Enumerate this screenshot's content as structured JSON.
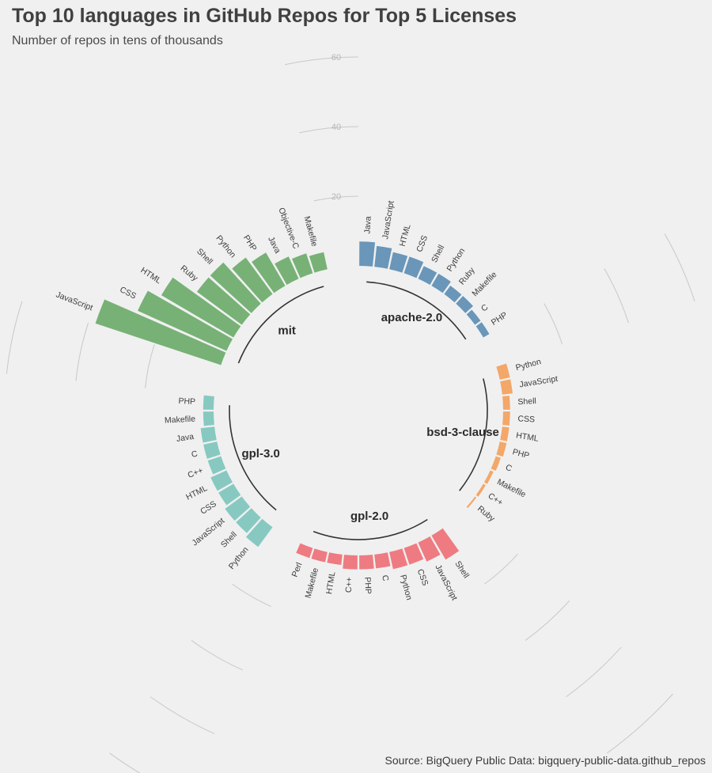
{
  "title": "Top 10 languages in GitHub Repos for Top 5 Licenses",
  "subtitle": "Number of repos in tens of thousands",
  "caption": "Source: BigQuery Public Data: bigquery-public-data.github_repos",
  "chart_data": {
    "type": "bar",
    "coordinate_system": "circular",
    "ylim": [
      0,
      80
    ],
    "y_ticks": [
      20,
      40,
      60,
      80
    ],
    "grid": true,
    "legend": "none",
    "series": [
      {
        "name": "apache-2.0",
        "color": "#6a96b9",
        "categories": [
          "Java",
          "JavaScript",
          "HTML",
          "CSS",
          "Shell",
          "Python",
          "Ruby",
          "Makefile",
          "C",
          "PHP"
        ],
        "values": [
          7,
          6,
          5,
          5,
          4,
          4,
          3,
          3,
          2,
          2
        ]
      },
      {
        "name": "bsd-3-clause",
        "color": "#f3a769",
        "categories": [
          "Python",
          "JavaScript",
          "Shell",
          "CSS",
          "HTML",
          "PHP",
          "C",
          "Makefile",
          "C++",
          "Ruby"
        ],
        "values": [
          3,
          3,
          2,
          2,
          2,
          2,
          1.5,
          1,
          0.8,
          0.5
        ]
      },
      {
        "name": "gpl-2.0",
        "color": "#ee7b81",
        "categories": [
          "Shell",
          "JavaScript",
          "CSS",
          "Python",
          "C",
          "PHP",
          "C++",
          "HTML",
          "Makefile",
          "Perl"
        ],
        "values": [
          8,
          6,
          5,
          5,
          4,
          4,
          4,
          3,
          3,
          3
        ]
      },
      {
        "name": "gpl-3.0",
        "color": "#87c9c1",
        "categories": [
          "Python",
          "Shell",
          "JavaScript",
          "CSS",
          "HTML",
          "C++",
          "C",
          "Java",
          "Makefile",
          "PHP"
        ],
        "values": [
          7,
          6,
          6,
          5,
          5,
          4,
          4,
          4,
          3,
          3
        ]
      },
      {
        "name": "mit",
        "color": "#77b176",
        "categories": [
          "JavaScript",
          "CSS",
          "HTML",
          "Ruby",
          "Shell",
          "Python",
          "PHP",
          "Java",
          "Objective-C",
          "Makefile"
        ],
        "values": [
          38,
          28,
          24,
          16,
          16,
          13,
          11,
          7,
          6,
          5
        ]
      }
    ]
  }
}
